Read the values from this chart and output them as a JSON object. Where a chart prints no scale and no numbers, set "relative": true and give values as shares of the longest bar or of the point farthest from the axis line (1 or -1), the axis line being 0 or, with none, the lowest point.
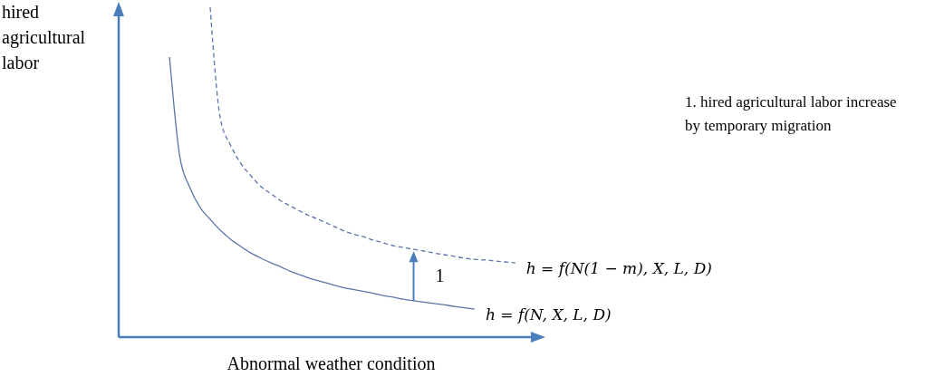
{
  "chart_data": {
    "type": "line",
    "relative": true,
    "xlabel": "Abnormal weather condition",
    "ylabel": "hired agricultural labor",
    "categories": [
      null,
      null,
      null,
      null,
      null,
      null,
      null,
      null,
      null,
      null,
      null,
      null,
      null,
      null,
      null,
      null,
      null,
      null,
      null,
      null,
      null,
      null,
      null,
      null,
      null,
      null,
      null,
      null,
      null,
      null,
      null,
      null,
      null,
      null,
      null,
      null,
      null,
      null,
      null,
      null,
      null
    ],
    "series": [
      {
        "name": "h = f(N, X, L, D)",
        "color": "#5a74a8",
        "line_style": "solid",
        "values": [
          null,
          null,
          null,
          null,
          null,
          0.849,
          0.549,
          0.453,
          0.393,
          0.357,
          0.324,
          0.297,
          0.275,
          0.255,
          0.239,
          0.225,
          0.212,
          0.198,
          0.187,
          0.176,
          0.168,
          0.159,
          0.151,
          0.145,
          0.139,
          0.133,
          0.126,
          0.121,
          0.115,
          0.11,
          0.106,
          0.102,
          0.098,
          0.093,
          0.089,
          0.085,
          null,
          null,
          null,
          null,
          null
        ]
      },
      {
        "name": "h = f(N(1 − m), X, L, D)",
        "color": "#5a74a8",
        "line_style": "dashed",
        "values": [
          null,
          null,
          null,
          null,
          null,
          null,
          null,
          null,
          null,
          1,
          0.662,
          0.582,
          0.527,
          0.489,
          0.456,
          0.434,
          0.412,
          0.396,
          0.379,
          0.365,
          0.352,
          0.338,
          0.324,
          0.313,
          0.305,
          0.294,
          0.286,
          0.277,
          0.272,
          0.266,
          0.261,
          0.255,
          0.25,
          0.245,
          0.239,
          0.236,
          0.234,
          0.231,
          0.228,
          0.225,
          null
        ]
      }
    ],
    "annotations": [
      "1",
      "1. hired agricultural labor increase by temporary migration"
    ]
  }
}
